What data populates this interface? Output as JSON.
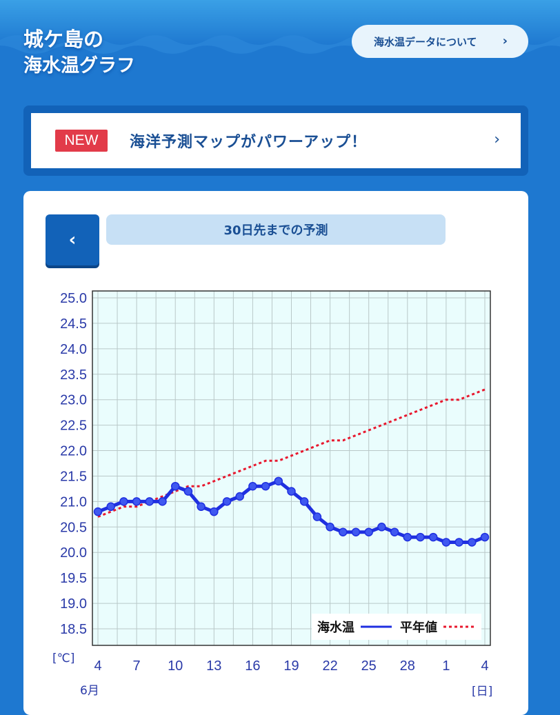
{
  "header": {
    "title_line1": "城ケ島の",
    "title_line2": "海水温グラフ",
    "about_button": "海水温データについて",
    "chevron_icon": "chevron-right-icon"
  },
  "banner": {
    "badge": "NEW",
    "text": "海洋予測マップがパワーアップ！",
    "badge_color": "#e23b49"
  },
  "forecast": {
    "back_icon": "chevron-left-icon",
    "label": "30日先までの予測"
  },
  "chart_data": {
    "type": "line",
    "x_tick_labels": [
      "4",
      "7",
      "10",
      "13",
      "16",
      "19",
      "22",
      "25",
      "28",
      "1",
      "4"
    ],
    "x_month_label": "6月",
    "x_unit_label": "[日]",
    "y_unit_label": "[℃]",
    "ylim": [
      18.5,
      25.0
    ],
    "y_ticks": [
      "25.0",
      "24.5",
      "24.0",
      "23.5",
      "23.0",
      "22.5",
      "22.0",
      "21.5",
      "21.0",
      "20.5",
      "20.0",
      "19.5",
      "19.0",
      "18.5"
    ],
    "x": [
      "6/4",
      "6/5",
      "6/6",
      "6/7",
      "6/8",
      "6/9",
      "6/10",
      "6/11",
      "6/12",
      "6/13",
      "6/14",
      "6/15",
      "6/16",
      "6/17",
      "6/18",
      "6/19",
      "6/20",
      "6/21",
      "6/22",
      "6/23",
      "6/24",
      "6/25",
      "6/26",
      "6/27",
      "6/28",
      "6/29",
      "6/30",
      "7/1",
      "7/2",
      "7/3",
      "7/4"
    ],
    "series": [
      {
        "name": "海水温",
        "style": "solid",
        "color": "#1f2fe0",
        "values": [
          20.8,
          20.9,
          21.0,
          21.0,
          21.0,
          21.0,
          21.3,
          21.2,
          20.9,
          20.8,
          21.0,
          21.1,
          21.3,
          21.3,
          21.4,
          21.2,
          21.0,
          20.7,
          20.5,
          20.4,
          20.4,
          20.4,
          20.5,
          20.4,
          20.3,
          20.3,
          20.3,
          20.2,
          20.2,
          20.2,
          20.3
        ]
      },
      {
        "name": "平年値",
        "style": "dotted",
        "color": "#e8182e",
        "values": [
          20.7,
          20.8,
          20.9,
          20.9,
          21.0,
          21.1,
          21.2,
          21.3,
          21.3,
          21.4,
          21.5,
          21.6,
          21.7,
          21.8,
          21.8,
          21.9,
          22.0,
          22.1,
          22.2,
          22.2,
          22.3,
          22.4,
          22.5,
          22.6,
          22.7,
          22.8,
          22.9,
          23.0,
          23.0,
          23.1,
          23.2
        ]
      }
    ],
    "legend_position": "bottom-right",
    "grid": true,
    "plot_background": "#eafdfd"
  }
}
